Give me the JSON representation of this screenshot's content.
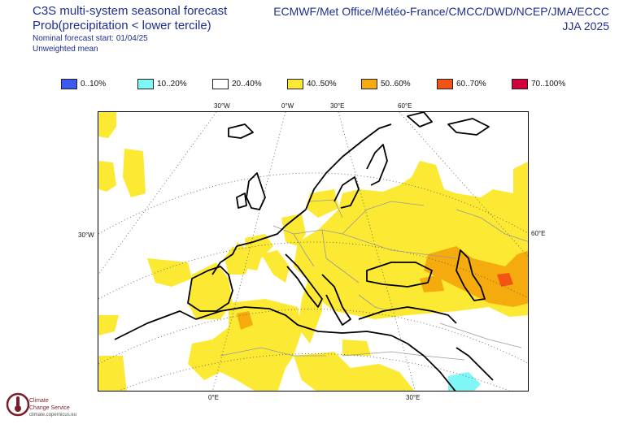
{
  "header": {
    "title": "C3S multi-system seasonal forecast",
    "subtitle": "Prob(precipitation < lower tercile)",
    "forecast_start": "Nominal forecast start: 01/04/25",
    "weighting": "Unweighted mean",
    "centres": "ECMWF/Met Office/Météo-France/CMCC/DWD/NCEP/JMA/ECCC",
    "season": "JJA 2025"
  },
  "legend": [
    {
      "label": "0..10%",
      "color": "#3c5af0"
    },
    {
      "label": "10..20%",
      "color": "#7ff7f7"
    },
    {
      "label": "20..40%",
      "color": "#ffffff"
    },
    {
      "label": "40..50%",
      "color": "#fce933"
    },
    {
      "label": "50..60%",
      "color": "#f5aa0e"
    },
    {
      "label": "60..70%",
      "color": "#f25513"
    },
    {
      "label": "70..100%",
      "color": "#d1003a"
    }
  ],
  "axis_labels": {
    "top": [
      "30°W",
      "0°W",
      "30°E",
      "60°E"
    ],
    "left": "30°W",
    "right": "60°E",
    "bottom": [
      "0°E",
      "30°E"
    ]
  },
  "logo": {
    "line1": "Climate",
    "line2": "Change Service",
    "url": "climate.copernicus.eu"
  }
}
